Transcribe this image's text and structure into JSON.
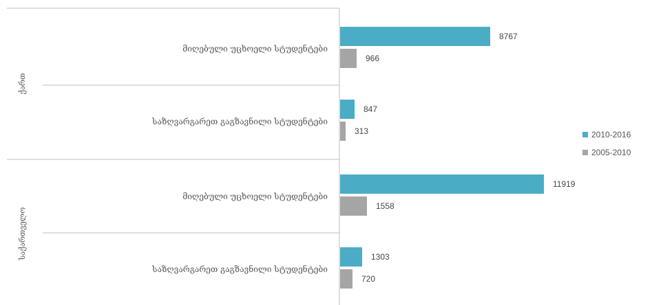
{
  "chart_data": {
    "type": "bar",
    "orientation": "horizontal",
    "groups": [
      {
        "label": "ქართ",
        "categories": [
          {
            "label": "მიღებული უცხოელი სტუდენტები",
            "values": [
              8767,
              966
            ]
          },
          {
            "label": "საზღვარგარეთ გაგზავნილი სტუდენტები",
            "values": [
              847,
              313
            ]
          }
        ]
      },
      {
        "label": "საქართველო",
        "categories": [
          {
            "label": "მიღებული უცხოელი სტუდენტები",
            "values": [
              11919,
              1558
            ]
          },
          {
            "label": "საზღვარგარეთ გაგზავნილი სტუდენტები",
            "values": [
              1303,
              720
            ]
          }
        ]
      }
    ],
    "series": [
      {
        "name": "2010-2016",
        "color": "#4bacc6"
      },
      {
        "name": "2005-2010",
        "color": "#a5a5a5"
      }
    ],
    "legend_position": "right",
    "grid": false,
    "title": "",
    "xlabel": "",
    "ylabel": ""
  }
}
